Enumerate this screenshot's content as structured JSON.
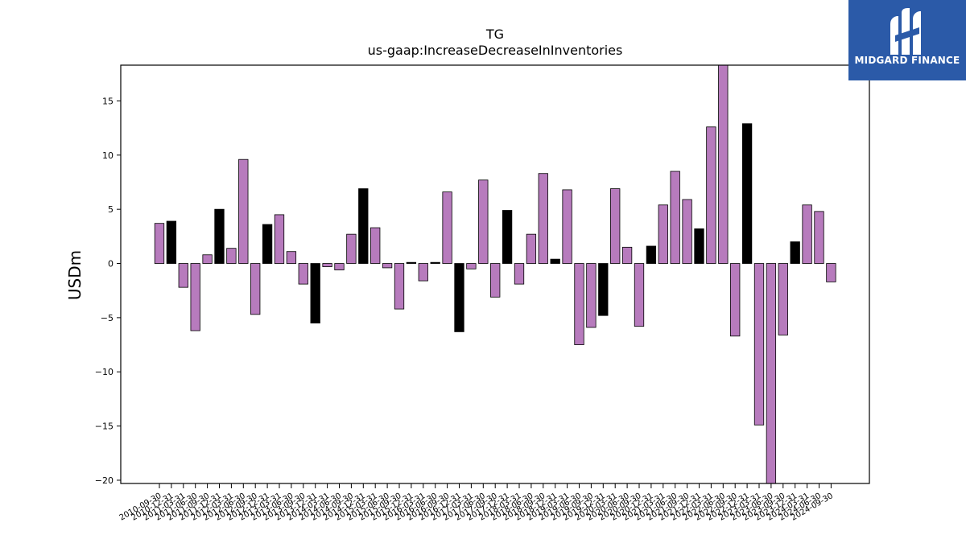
{
  "brand": {
    "name": "MIDGARD FINANCE",
    "bg_color": "#2b5aa8"
  },
  "chart_data": {
    "type": "bar",
    "title": "TG",
    "subtitle": "us-gaap:IncreaseDecreaseInInventories",
    "xlabel": "",
    "ylabel": "USDm",
    "ylim": [
      -20.3,
      18.3
    ],
    "yticks": [
      -20,
      -15,
      -10,
      -5,
      0,
      5,
      10,
      15
    ],
    "grid": false,
    "colors": {
      "default": "#b77bbd",
      "highlight": "#000000"
    },
    "tick_labels": [
      "2010-09-30",
      "2010-12-31",
      "2011-03-31",
      "2011-06-30",
      "2011-09-30",
      "2011-12-31",
      "2012-03-31",
      "2012-06-30",
      "2012-09-30",
      "2012-12-31",
      "2013-03-31",
      "2013-06-30",
      "2013-09-30",
      "2013-12-31",
      "2014-03-31",
      "2014-06-30",
      "2014-09-30",
      "2014-12-31",
      "2015-03-31",
      "2015-06-30",
      "2015-09-30",
      "2015-12-31",
      "2016-03-31",
      "2016-06-30",
      "2016-09-30",
      "2016-12-31",
      "2017-03-31",
      "2017-06-30",
      "2017-09-30",
      "2017-12-31",
      "2018-03-31",
      "2018-06-30",
      "2018-09-30",
      "2018-12-31",
      "2019-03-31",
      "2019-06-30",
      "2019-09-30",
      "2019-12-31",
      "2020-03-31",
      "2020-06-30",
      "2020-09-30",
      "2020-12-31",
      "2021-03-31",
      "2021-06-30",
      "2021-09-30",
      "2021-12-31",
      "2022-03-31",
      "2022-06-30",
      "2022-09-30",
      "2022-12-31",
      "2023-03-31",
      "2023-06-30",
      "2023-09-30",
      "2023-12-31",
      "2024-03-31",
      "2024-06-30",
      "2024-09-30"
    ],
    "values": [
      3.7,
      3.9,
      -2.2,
      -6.2,
      0.8,
      5.0,
      1.4,
      9.6,
      -4.7,
      3.6,
      4.5,
      1.1,
      -1.9,
      -5.5,
      -0.3,
      -0.6,
      2.7,
      6.9,
      3.3,
      -0.4,
      -4.2,
      0.1,
      -1.6,
      0.1,
      6.6,
      -6.3,
      -0.5,
      7.7,
      -3.1,
      4.9,
      -1.9,
      2.7,
      8.3,
      0.4,
      6.8,
      -7.5,
      -5.9,
      -4.8,
      6.9,
      1.5,
      -5.8,
      1.6,
      5.4,
      8.5,
      5.9,
      3.2,
      12.6,
      18.3,
      -6.7,
      12.9,
      -14.9,
      -20.3,
      -6.6,
      2.0,
      5.4,
      4.8,
      -1.7
    ],
    "highlight": [
      false,
      true,
      false,
      false,
      false,
      true,
      false,
      false,
      false,
      true,
      false,
      false,
      false,
      true,
      false,
      false,
      false,
      true,
      false,
      false,
      false,
      true,
      false,
      true,
      false,
      true,
      false,
      false,
      false,
      true,
      false,
      false,
      false,
      true,
      false,
      false,
      false,
      true,
      false,
      false,
      false,
      true,
      false,
      false,
      false,
      true,
      false,
      false,
      false,
      true,
      false,
      false,
      false,
      true,
      false,
      false,
      false
    ]
  }
}
